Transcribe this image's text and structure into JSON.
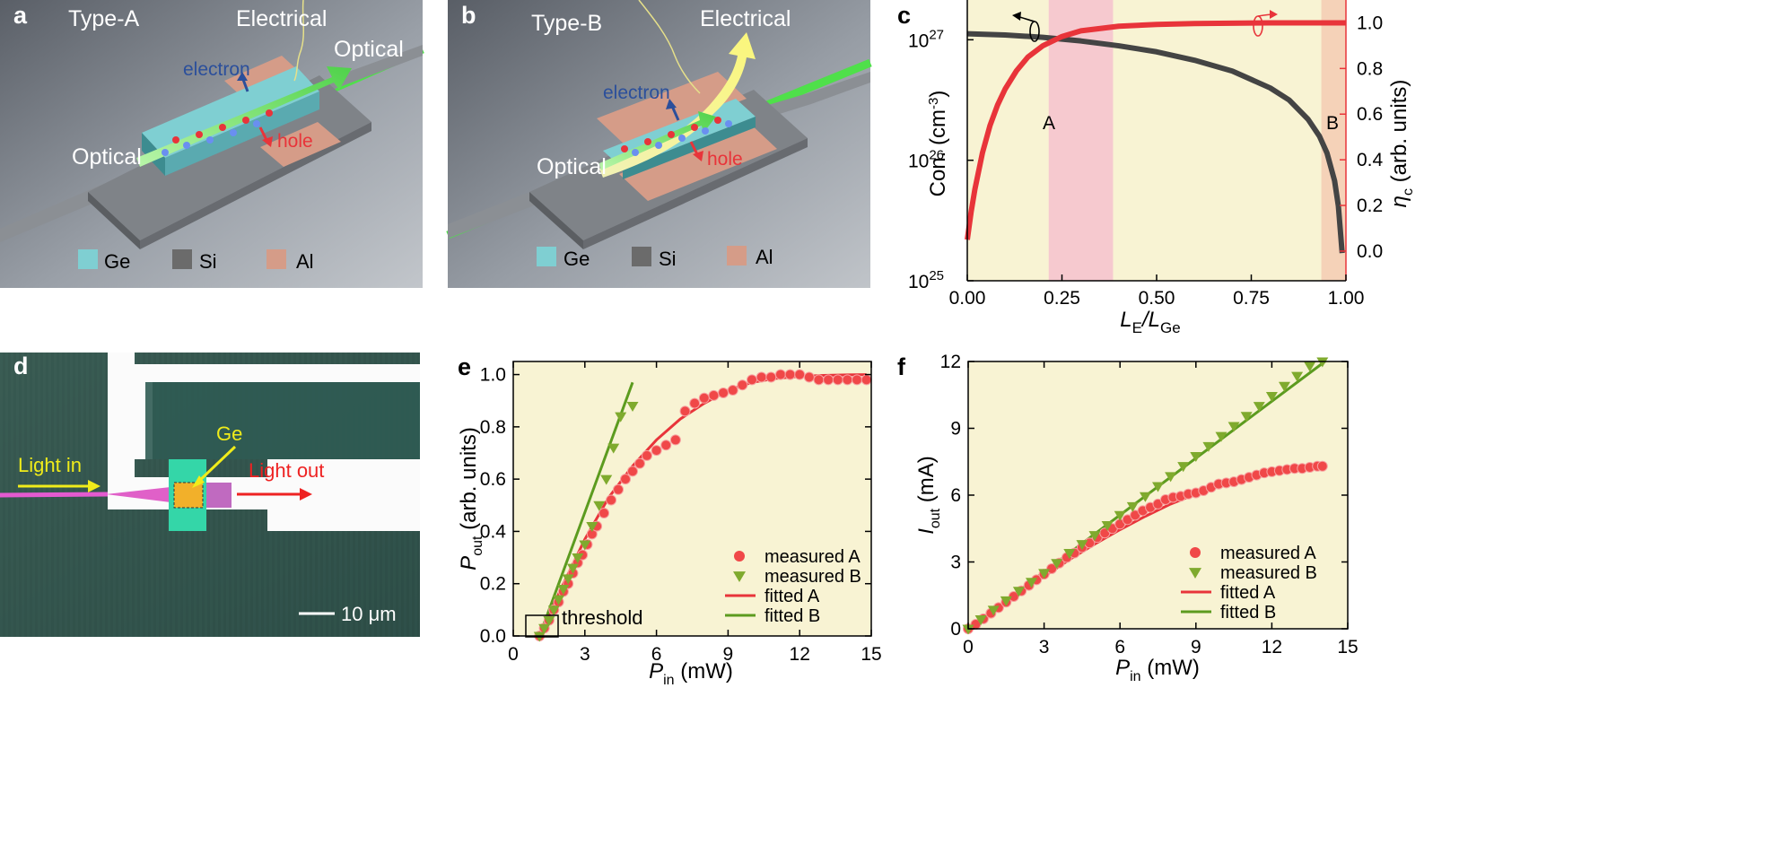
{
  "figure": {
    "panel_a": {
      "label": "a",
      "type_label": "Type-A",
      "electrical": "Electrical",
      "optical_out": "Optical",
      "optical_in": "Optical",
      "electron": "electron",
      "hole": "hole",
      "legend": [
        {
          "name": "Ge",
          "color": "#7fcfd2"
        },
        {
          "name": "Si",
          "color": "#6b6b6b"
        },
        {
          "name": "Al",
          "color": "#d59c88"
        }
      ]
    },
    "panel_b": {
      "label": "b",
      "type_label": "Type-B",
      "electrical": "Electrical",
      "optical_in": "Optical",
      "electron": "electron",
      "hole": "hole",
      "legend": [
        {
          "name": "Ge",
          "color": "#7fcfd2"
        },
        {
          "name": "Si",
          "color": "#6b6b6b"
        },
        {
          "name": "Al",
          "color": "#d59c88"
        }
      ]
    },
    "panel_d": {
      "label": "d",
      "light_in": "Light  in",
      "light_out": "Light out",
      "ge": "Ge",
      "scale_bar": "10 μm"
    },
    "colors": {
      "red": "#e8343a",
      "green": "#5c9b1f",
      "dark": "#3c3c3c",
      "chart_bg": "#f8f3d3",
      "band_a": "#f6c9cf",
      "band_b": "#f5d2b8"
    }
  },
  "chart_data": [
    {
      "id": "c",
      "label": "c",
      "type": "line",
      "xlabel": "LE/LGe",
      "xlabel_main": "L",
      "xlabel_sub1": "E",
      "xlabel_sep": "/L",
      "xlabel_sub2": "Ge",
      "ylabel_left": "Con. (cm-3)",
      "ylabel_left_main": "Con. (cm",
      "ylabel_left_sup": "-3",
      "ylabel_left_end": ")",
      "ylabel_right": "ηc (arb. units)",
      "ylabel_right_main": "η",
      "ylabel_right_sub": "c",
      "ylabel_right_end": " (arb. units)",
      "xlim": [
        0,
        1.0
      ],
      "ylim_left_log10": [
        25,
        27.33
      ],
      "ylim_right": [
        -0.13,
        1.1
      ],
      "xticks": [
        0,
        0.25,
        0.5,
        0.75,
        1.0
      ],
      "xtick_labels": [
        "0.00",
        "0.25",
        "0.50",
        "0.75",
        "1.00"
      ],
      "yticks_left": [
        25,
        26,
        27
      ],
      "ytick_left_labels": [
        "10",
        "10",
        "10"
      ],
      "ytick_left_sups": [
        "25",
        "26",
        "27"
      ],
      "yticks_right": [
        0.0,
        0.2,
        0.4,
        0.6,
        0.8,
        1.0
      ],
      "ytick_right_labels": [
        "0.0",
        "0.2",
        "0.4",
        "0.6",
        "0.8",
        "1.0"
      ],
      "regions": [
        {
          "name": "A",
          "x": [
            0.215,
            0.385
          ]
        },
        {
          "name": "B",
          "x": [
            0.935,
            1.0
          ]
        }
      ],
      "series": [
        {
          "name": "Con.",
          "axis": "left",
          "color": "#444444",
          "x": [
            0,
            0.1,
            0.2,
            0.3,
            0.4,
            0.5,
            0.6,
            0.7,
            0.8,
            0.85,
            0.9,
            0.93,
            0.95,
            0.97,
            0.98,
            0.99
          ],
          "y_log10": [
            27.05,
            27.04,
            27.02,
            26.99,
            26.95,
            26.9,
            26.83,
            26.74,
            26.6,
            26.5,
            26.34,
            26.2,
            26.06,
            25.83,
            25.62,
            25.23
          ]
        },
        {
          "name": "ηc",
          "axis": "right",
          "color": "#e8343a",
          "x": [
            0,
            0.01,
            0.02,
            0.04,
            0.06,
            0.08,
            0.1,
            0.13,
            0.16,
            0.2,
            0.25,
            0.3,
            0.4,
            0.5,
            0.6,
            0.8,
            1.0
          ],
          "y": [
            0.05,
            0.17,
            0.27,
            0.43,
            0.55,
            0.64,
            0.71,
            0.79,
            0.85,
            0.9,
            0.94,
            0.965,
            0.985,
            0.993,
            0.997,
            1.0,
            1.0
          ]
        }
      ]
    },
    {
      "id": "e",
      "label": "e",
      "type": "scatter",
      "xlabel": "Pin (mW)",
      "xlabel_main": "P",
      "xlabel_sub": "in",
      "xlabel_end": " (mW)",
      "ylabel": "Pout (arb. units)",
      "ylabel_main": "P",
      "ylabel_sub": "out",
      "ylabel_end": " (arb. units)",
      "xlim": [
        0,
        15
      ],
      "ylim": [
        0,
        1.05
      ],
      "xticks": [
        0,
        3,
        6,
        9,
        12,
        15
      ],
      "xtick_labels": [
        "0",
        "3",
        "6",
        "9",
        "12",
        "15"
      ],
      "yticks": [
        0,
        0.2,
        0.4,
        0.6,
        0.8,
        1.0
      ],
      "ytick_labels": [
        "0.0",
        "0.2",
        "0.4",
        "0.6",
        "0.8",
        "1.0"
      ],
      "annotation": "threshold",
      "legend": [
        "measured A",
        "measured B",
        "fitted A",
        "fitted B"
      ],
      "measured_A": {
        "x": [
          1.1,
          1.3,
          1.5,
          1.7,
          1.9,
          2.1,
          2.3,
          2.5,
          2.7,
          2.9,
          3.1,
          3.3,
          3.5,
          3.8,
          4.1,
          4.4,
          4.7,
          5.0,
          5.3,
          5.6,
          6.0,
          6.4,
          6.8,
          7.2,
          7.6,
          8.0,
          8.4,
          8.8,
          9.2,
          9.6,
          10.0,
          10.4,
          10.8,
          11.2,
          11.6,
          12.0,
          12.4,
          12.8,
          13.2,
          13.6,
          14.0,
          14.4,
          14.8
        ],
        "y": [
          0.0,
          0.03,
          0.06,
          0.1,
          0.13,
          0.17,
          0.2,
          0.24,
          0.28,
          0.31,
          0.35,
          0.39,
          0.42,
          0.47,
          0.52,
          0.56,
          0.6,
          0.63,
          0.66,
          0.69,
          0.71,
          0.73,
          0.75,
          0.86,
          0.89,
          0.91,
          0.92,
          0.93,
          0.94,
          0.96,
          0.98,
          0.99,
          0.99,
          1.0,
          1.0,
          1.0,
          0.99,
          0.98,
          0.98,
          0.98,
          0.98,
          0.98,
          0.98
        ]
      },
      "measured_B": {
        "x": [
          1.1,
          1.3,
          1.5,
          1.7,
          1.9,
          2.1,
          2.3,
          2.5,
          2.7,
          3.0,
          3.3,
          3.6,
          3.9,
          4.2,
          4.5,
          5.0
        ],
        "y": [
          0.0,
          0.03,
          0.06,
          0.1,
          0.14,
          0.18,
          0.22,
          0.26,
          0.3,
          0.35,
          0.42,
          0.5,
          0.6,
          0.72,
          0.84,
          0.88
        ]
      },
      "fitted_A": {
        "x": [
          1.1,
          2,
          3,
          4,
          5,
          6,
          7,
          8,
          9,
          10,
          11,
          12,
          13,
          14,
          14.8
        ],
        "y": [
          0.0,
          0.18,
          0.37,
          0.53,
          0.65,
          0.75,
          0.83,
          0.89,
          0.94,
          0.97,
          0.985,
          0.993,
          0.997,
          0.999,
          1.0
        ]
      },
      "fitted_B": {
        "x": [
          1.1,
          5.0
        ],
        "y": [
          0.0,
          0.97
        ]
      }
    },
    {
      "id": "f",
      "label": "f",
      "type": "scatter",
      "xlabel": "Pin (mW)",
      "xlabel_main": "P",
      "xlabel_sub": "in",
      "xlabel_end": " (mW)",
      "ylabel": "Iout (mA)",
      "ylabel_main": "I",
      "ylabel_sub": "out",
      "ylabel_end": " (mA)",
      "xlim": [
        0,
        15
      ],
      "ylim": [
        0,
        12
      ],
      "xticks": [
        0,
        3,
        6,
        9,
        12,
        15
      ],
      "xtick_labels": [
        "0",
        "3",
        "6",
        "9",
        "12",
        "15"
      ],
      "yticks": [
        0,
        3,
        6,
        9,
        12
      ],
      "ytick_labels": [
        "0",
        "3",
        "6",
        "9",
        "12"
      ],
      "legend": [
        "measured A",
        "measured B",
        "fitted A",
        "fitted B"
      ],
      "measured_A": {
        "x": [
          0.0,
          0.3,
          0.6,
          0.9,
          1.2,
          1.5,
          1.8,
          2.1,
          2.4,
          2.7,
          3.0,
          3.3,
          3.6,
          3.9,
          4.2,
          4.5,
          4.8,
          5.1,
          5.4,
          5.7,
          6.0,
          6.3,
          6.6,
          6.9,
          7.2,
          7.5,
          7.8,
          8.1,
          8.4,
          8.7,
          9.0,
          9.3,
          9.6,
          9.9,
          10.2,
          10.5,
          10.8,
          11.1,
          11.4,
          11.7,
          12.0,
          12.3,
          12.6,
          12.9,
          13.2,
          13.5,
          13.8,
          14.0
        ],
        "y": [
          0.0,
          0.2,
          0.45,
          0.7,
          0.95,
          1.2,
          1.45,
          1.7,
          1.95,
          2.2,
          2.45,
          2.7,
          2.95,
          3.2,
          3.4,
          3.65,
          3.85,
          4.1,
          4.3,
          4.5,
          4.7,
          4.9,
          5.1,
          5.3,
          5.45,
          5.6,
          5.8,
          5.9,
          5.95,
          6.05,
          6.1,
          6.2,
          6.35,
          6.5,
          6.55,
          6.6,
          6.7,
          6.8,
          6.9,
          7.0,
          7.05,
          7.1,
          7.15,
          7.2,
          7.2,
          7.25,
          7.3,
          7.3
        ]
      },
      "measured_B": {
        "x": [
          0.0,
          0.5,
          1.0,
          1.5,
          2.0,
          2.5,
          3.0,
          3.5,
          4.0,
          4.5,
          5.0,
          5.5,
          6.0,
          6.5,
          7.0,
          7.5,
          8.0,
          8.5,
          9.0,
          9.5,
          10.0,
          10.5,
          11.0,
          11.5,
          12.0,
          12.5,
          13.0,
          13.5,
          14.0
        ],
        "y": [
          0.0,
          0.42,
          0.85,
          1.27,
          1.7,
          2.1,
          2.5,
          2.95,
          3.4,
          3.8,
          4.2,
          4.65,
          5.1,
          5.5,
          5.95,
          6.4,
          6.85,
          7.3,
          7.75,
          8.2,
          8.65,
          9.1,
          9.55,
          10.0,
          10.45,
          10.9,
          11.35,
          11.8,
          12.0
        ]
      },
      "fitted_A": {
        "x": [
          0,
          1,
          2,
          3,
          4,
          5,
          6,
          7,
          8,
          9,
          10,
          11,
          12,
          13,
          14
        ],
        "y": [
          0,
          0.78,
          1.6,
          2.35,
          3.1,
          3.8,
          4.45,
          5.05,
          5.6,
          6.05,
          6.45,
          6.8,
          7.05,
          7.2,
          7.3
        ]
      },
      "fitted_B": {
        "x": [
          0,
          14.1
        ],
        "y": [
          0,
          12.0
        ]
      }
    }
  ]
}
